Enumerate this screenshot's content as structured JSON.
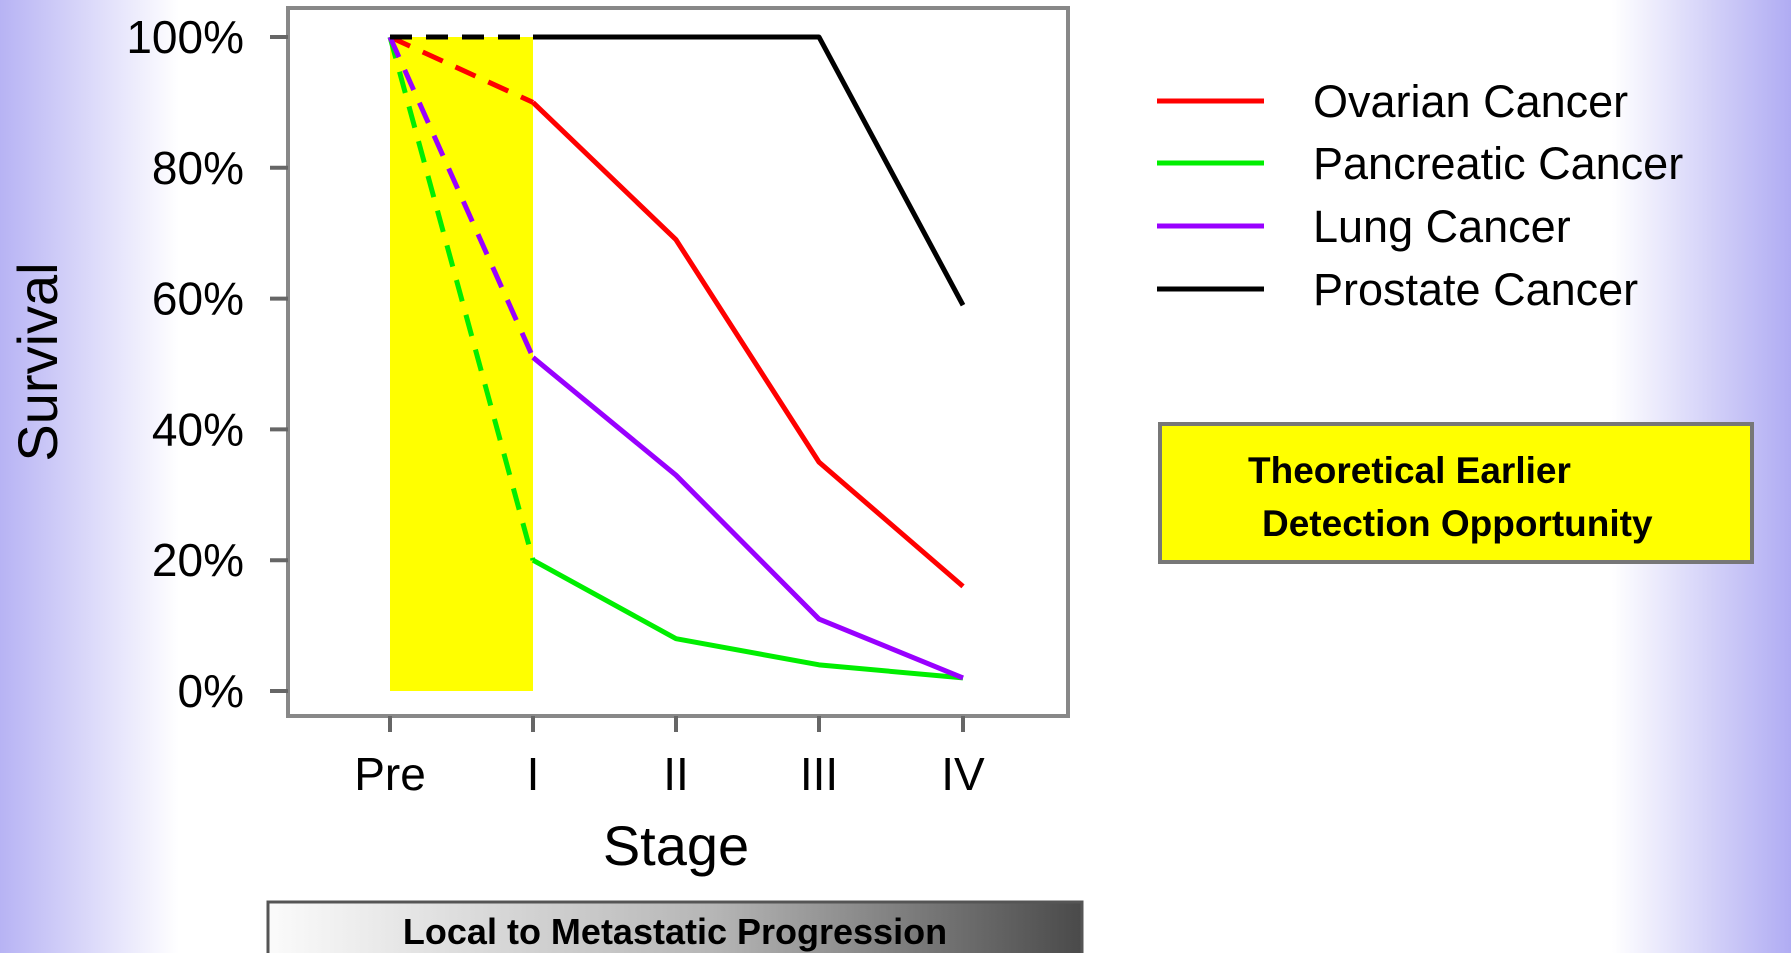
{
  "chart_data": {
    "type": "line",
    "xlabel": "Stage",
    "ylabel": "Survival",
    "categories": [
      "Pre",
      "I",
      "II",
      "III",
      "IV"
    ],
    "y_ticks": [
      "0%",
      "20%",
      "40%",
      "60%",
      "80%",
      "100%"
    ],
    "ylim": [
      0,
      100
    ],
    "grid": false,
    "legend_position": "right",
    "highlight_region": {
      "from": "Pre",
      "to": "I",
      "color": "#ffff00",
      "label_line1": "Theoretical Earlier",
      "label_line2": "Detection Opportunity"
    },
    "series": [
      {
        "name": "Ovarian Cancer",
        "color": "#ff0000",
        "values": [
          100,
          90,
          69,
          35,
          16
        ]
      },
      {
        "name": "Pancreatic Cancer",
        "color": "#00ee00",
        "values": [
          100,
          20,
          8,
          4,
          2
        ]
      },
      {
        "name": "Lung Cancer",
        "color": "#9900ff",
        "values": [
          100,
          51,
          33,
          11,
          2
        ]
      },
      {
        "name": "Prostate Cancer",
        "color": "#000000",
        "values": [
          100,
          100,
          100,
          100,
          59
        ]
      }
    ],
    "dashed_segment": "Pre to I",
    "bottom_bar_label": "Local to Metastatic Progression"
  }
}
